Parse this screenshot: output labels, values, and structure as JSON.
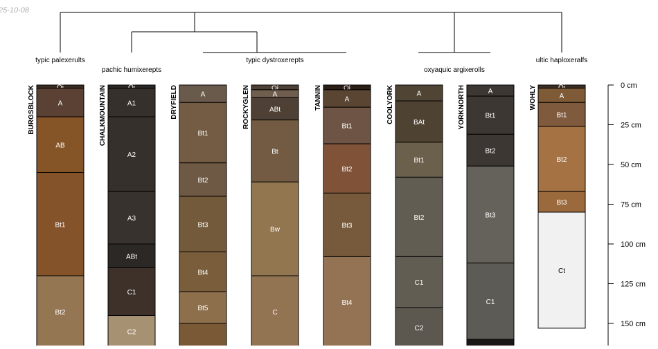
{
  "date_stamp": "25-10-08",
  "depth_unit": "cm",
  "depth_ticks": [
    {
      "depth": 0,
      "label": "0 cm"
    },
    {
      "depth": 25,
      "label": "25 cm"
    },
    {
      "depth": 50,
      "label": "50 cm"
    },
    {
      "depth": 75,
      "label": "75 cm"
    },
    {
      "depth": 100,
      "label": "100 cm"
    },
    {
      "depth": 125,
      "label": "125 cm"
    },
    {
      "depth": 150,
      "label": "150 cm"
    }
  ],
  "taxa_labels": [
    {
      "text": "typic palexerults"
    },
    {
      "text": "pachic humixerepts"
    },
    {
      "text": "typic dystroxerepts"
    },
    {
      "text": "oxyaquic argixerolls"
    },
    {
      "text": "ultic haploxeralfs"
    }
  ],
  "profiles": [
    {
      "name": "BURGSBLOCK",
      "horizons": [
        {
          "name": "Oi",
          "top": 0,
          "bottom": 2,
          "color": "#3a2c23"
        },
        {
          "name": "A",
          "top": 2,
          "bottom": 20,
          "color": "#5a4134"
        },
        {
          "name": "AB",
          "top": 20,
          "bottom": 55,
          "color": "#855528"
        },
        {
          "name": "Bt1",
          "top": 55,
          "bottom": 120,
          "color": "#85532a"
        },
        {
          "name": "Bt2",
          "top": 120,
          "bottom": 165,
          "color": "#957652"
        }
      ]
    },
    {
      "name": "CHALKMOUNTAIN",
      "horizons": [
        {
          "name": "Oi",
          "top": 0,
          "bottom": 2,
          "color": "#2a2725"
        },
        {
          "name": "A1",
          "top": 2,
          "bottom": 20,
          "color": "#36302d"
        },
        {
          "name": "A2",
          "top": 20,
          "bottom": 67,
          "color": "#36302c"
        },
        {
          "name": "A3",
          "top": 67,
          "bottom": 100,
          "color": "#38322f"
        },
        {
          "name": "ABt",
          "top": 100,
          "bottom": 115,
          "color": "#2c2825"
        },
        {
          "name": "C1",
          "top": 115,
          "bottom": 145,
          "color": "#3d3129"
        },
        {
          "name": "C2",
          "top": 145,
          "bottom": 165,
          "color": "#a69273"
        }
      ]
    },
    {
      "name": "DRYFIELD",
      "horizons": [
        {
          "name": "A",
          "top": 0,
          "bottom": 11,
          "color": "#6a5a4b"
        },
        {
          "name": "Bt1",
          "top": 11,
          "bottom": 49,
          "color": "#735c43"
        },
        {
          "name": "Bt2",
          "top": 49,
          "bottom": 70,
          "color": "#6e5944"
        },
        {
          "name": "Bt3",
          "top": 70,
          "bottom": 105,
          "color": "#735a3a"
        },
        {
          "name": "Bt4",
          "top": 105,
          "bottom": 130,
          "color": "#7a5d3b"
        },
        {
          "name": "Bt5",
          "top": 130,
          "bottom": 150,
          "color": "#8e6f4b"
        },
        {
          "name": "",
          "top": 150,
          "bottom": 165,
          "color": "#7a5a36"
        }
      ]
    },
    {
      "name": "ROCKYGLEN",
      "horizons": [
        {
          "name": "Oi",
          "top": 0,
          "bottom": 3,
          "color": "#4e4034"
        },
        {
          "name": "A",
          "top": 3,
          "bottom": 8,
          "color": "#6f5d4e"
        },
        {
          "name": "ABt",
          "top": 8,
          "bottom": 22,
          "color": "#4e4034"
        },
        {
          "name": "Bt",
          "top": 22,
          "bottom": 61,
          "color": "#725b42"
        },
        {
          "name": "Bw",
          "top": 61,
          "bottom": 120,
          "color": "#92764f"
        },
        {
          "name": "C",
          "top": 120,
          "bottom": 165,
          "color": "#927352"
        }
      ]
    },
    {
      "name": "TANNIN",
      "horizons": [
        {
          "name": "Oi",
          "top": 0,
          "bottom": 3,
          "color": "#2a1e16"
        },
        {
          "name": "A",
          "top": 3,
          "bottom": 14,
          "color": "#5a4533"
        },
        {
          "name": "Bt1",
          "top": 14,
          "bottom": 37,
          "color": "#6e5444"
        },
        {
          "name": "Bt2",
          "top": 37,
          "bottom": 68,
          "color": "#805339"
        },
        {
          "name": "Bt3",
          "top": 68,
          "bottom": 108,
          "color": "#775a3b"
        },
        {
          "name": "Bt4",
          "top": 108,
          "bottom": 165,
          "color": "#937353"
        }
      ]
    },
    {
      "name": "COOLYORK",
      "horizons": [
        {
          "name": "A",
          "top": 0,
          "bottom": 10,
          "color": "#504535"
        },
        {
          "name": "BAt",
          "top": 10,
          "bottom": 36,
          "color": "#4e4233"
        },
        {
          "name": "Bt1",
          "top": 36,
          "bottom": 58,
          "color": "#6a604c"
        },
        {
          "name": "Bt2",
          "top": 58,
          "bottom": 108,
          "color": "#615d52"
        },
        {
          "name": "C1",
          "top": 108,
          "bottom": 140,
          "color": "#615d52"
        },
        {
          "name": "C2",
          "top": 140,
          "bottom": 165,
          "color": "#5c5850"
        }
      ]
    },
    {
      "name": "YORKNORTH",
      "horizons": [
        {
          "name": "A",
          "top": 0,
          "bottom": 7,
          "color": "#3d3733"
        },
        {
          "name": "Bt1",
          "top": 7,
          "bottom": 31,
          "color": "#3d3733"
        },
        {
          "name": "Bt2",
          "top": 31,
          "bottom": 51,
          "color": "#3d3733"
        },
        {
          "name": "Bt3",
          "top": 51,
          "bottom": 112,
          "color": "#64625b"
        },
        {
          "name": "C1",
          "top": 112,
          "bottom": 160,
          "color": "#5d5b55"
        },
        {
          "name": "",
          "top": 160,
          "bottom": 165,
          "color": "#1a1816"
        }
      ]
    },
    {
      "name": "WOHLY",
      "horizons": [
        {
          "name": "Oi",
          "top": 0,
          "bottom": 2,
          "color": "#3c2e22"
        },
        {
          "name": "A",
          "top": 2,
          "bottom": 11,
          "color": "#7f5a36"
        },
        {
          "name": "Bt1",
          "top": 11,
          "bottom": 26,
          "color": "#7f5a3d"
        },
        {
          "name": "Bt2",
          "top": 26,
          "bottom": 67,
          "color": "#a57343"
        },
        {
          "name": "Bt3",
          "top": 67,
          "bottom": 80,
          "color": "#9b6a3c"
        },
        {
          "name": "Ct",
          "top": 80,
          "bottom": 153,
          "color": "#f1f1f1"
        }
      ]
    }
  ]
}
